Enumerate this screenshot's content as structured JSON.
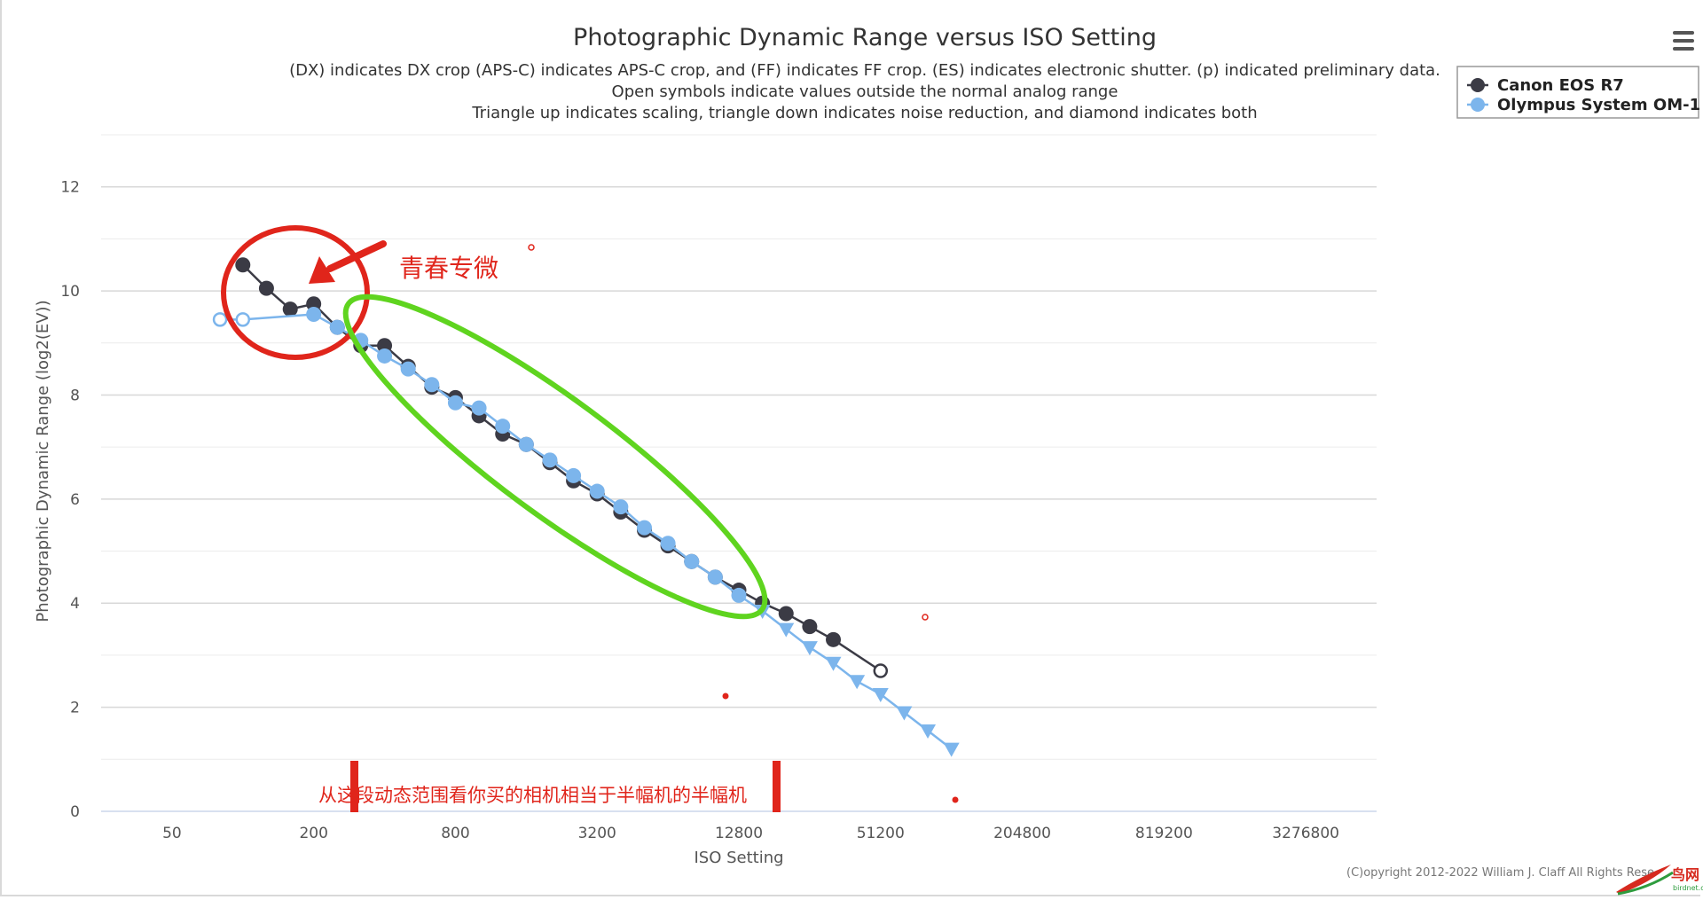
{
  "chart_data": {
    "type": "line",
    "title": "Photographic Dynamic Range versus ISO Setting",
    "subtitle": [
      "(DX) indicates DX crop (APS-C) indicates APS-C crop, and (FF) indicates FF crop. (ES) indicates electronic shutter. (p) indicated preliminary data.",
      "Open symbols indicate values outside the normal analog range",
      "Triangle up indicates scaling, triangle down indicates noise reduction, and diamond indicates both"
    ],
    "xlabel": "ISO Setting",
    "ylabel": "Photographic Dynamic Range (log2(EV))",
    "x_scale": "log2",
    "xlim": [
      25,
      6553600
    ],
    "ylim": [
      0,
      13
    ],
    "x_ticks": [
      50,
      200,
      800,
      3200,
      12800,
      51200,
      204800,
      819200,
      3276800
    ],
    "y_ticks": [
      0,
      2,
      4,
      6,
      8,
      10,
      12
    ],
    "grid": true,
    "legend_position": "top-right",
    "series": [
      {
        "name": "Canon EOS R7",
        "color": "#3b3b45",
        "points": [
          {
            "x": 100,
            "y": 10.5,
            "marker": "circle"
          },
          {
            "x": 126,
            "y": 10.05,
            "marker": "circle"
          },
          {
            "x": 159,
            "y": 9.65,
            "marker": "circle"
          },
          {
            "x": 200,
            "y": 9.75,
            "marker": "circle"
          },
          {
            "x": 252,
            "y": 9.3,
            "marker": "circle"
          },
          {
            "x": 317,
            "y": 8.95,
            "marker": "circle"
          },
          {
            "x": 400,
            "y": 8.95,
            "marker": "circle"
          },
          {
            "x": 504,
            "y": 8.55,
            "marker": "circle"
          },
          {
            "x": 635,
            "y": 8.15,
            "marker": "circle"
          },
          {
            "x": 800,
            "y": 7.95,
            "marker": "circle"
          },
          {
            "x": 1008,
            "y": 7.6,
            "marker": "circle"
          },
          {
            "x": 1270,
            "y": 7.25,
            "marker": "circle"
          },
          {
            "x": 1600,
            "y": 7.05,
            "marker": "circle"
          },
          {
            "x": 2016,
            "y": 6.7,
            "marker": "circle"
          },
          {
            "x": 2540,
            "y": 6.35,
            "marker": "circle"
          },
          {
            "x": 3200,
            "y": 6.1,
            "marker": "circle"
          },
          {
            "x": 4032,
            "y": 5.75,
            "marker": "circle"
          },
          {
            "x": 5080,
            "y": 5.4,
            "marker": "circle"
          },
          {
            "x": 6400,
            "y": 5.1,
            "marker": "circle"
          },
          {
            "x": 8063,
            "y": 4.8,
            "marker": "circle"
          },
          {
            "x": 10159,
            "y": 4.5,
            "marker": "circle"
          },
          {
            "x": 12800,
            "y": 4.25,
            "marker": "circle"
          },
          {
            "x": 16127,
            "y": 4.0,
            "marker": "circle"
          },
          {
            "x": 20319,
            "y": 3.8,
            "marker": "circle"
          },
          {
            "x": 25600,
            "y": 3.55,
            "marker": "circle"
          },
          {
            "x": 32254,
            "y": 3.3,
            "marker": "circle"
          },
          {
            "x": 51200,
            "y": 2.7,
            "marker": "circle-open"
          }
        ]
      },
      {
        "name": "Olympus System OM-1",
        "color": "#7cb5ec",
        "points": [
          {
            "x": 80,
            "y": 9.45,
            "marker": "circle-open"
          },
          {
            "x": 100,
            "y": 9.45,
            "marker": "circle-open"
          },
          {
            "x": 200,
            "y": 9.55,
            "marker": "circle"
          },
          {
            "x": 252,
            "y": 9.3,
            "marker": "circle"
          },
          {
            "x": 317,
            "y": 9.05,
            "marker": "circle"
          },
          {
            "x": 400,
            "y": 8.75,
            "marker": "circle"
          },
          {
            "x": 504,
            "y": 8.5,
            "marker": "circle"
          },
          {
            "x": 635,
            "y": 8.2,
            "marker": "circle"
          },
          {
            "x": 800,
            "y": 7.85,
            "marker": "circle"
          },
          {
            "x": 1008,
            "y": 7.75,
            "marker": "circle"
          },
          {
            "x": 1270,
            "y": 7.4,
            "marker": "circle"
          },
          {
            "x": 1600,
            "y": 7.05,
            "marker": "circle"
          },
          {
            "x": 2016,
            "y": 6.75,
            "marker": "circle"
          },
          {
            "x": 2540,
            "y": 6.45,
            "marker": "circle"
          },
          {
            "x": 3200,
            "y": 6.15,
            "marker": "circle"
          },
          {
            "x": 4032,
            "y": 5.85,
            "marker": "circle"
          },
          {
            "x": 5080,
            "y": 5.45,
            "marker": "circle"
          },
          {
            "x": 6400,
            "y": 5.15,
            "marker": "circle"
          },
          {
            "x": 8063,
            "y": 4.8,
            "marker": "circle"
          },
          {
            "x": 10159,
            "y": 4.5,
            "marker": "circle"
          },
          {
            "x": 12800,
            "y": 4.15,
            "marker": "circle"
          },
          {
            "x": 16127,
            "y": 3.85,
            "marker": "triangle-down"
          },
          {
            "x": 20319,
            "y": 3.5,
            "marker": "triangle-down"
          },
          {
            "x": 25600,
            "y": 3.15,
            "marker": "triangle-down"
          },
          {
            "x": 32254,
            "y": 2.85,
            "marker": "triangle-down"
          },
          {
            "x": 40637,
            "y": 2.5,
            "marker": "triangle-down"
          },
          {
            "x": 51200,
            "y": 2.25,
            "marker": "triangle-down"
          },
          {
            "x": 64508,
            "y": 1.9,
            "marker": "triangle-down"
          },
          {
            "x": 81275,
            "y": 1.55,
            "marker": "triangle-down"
          },
          {
            "x": 102400,
            "y": 1.2,
            "marker": "triangle-down"
          }
        ]
      }
    ],
    "credit": "(C)opyright 2012-2022 William J. Claff All Rights Rese",
    "annotations": {
      "label_top": "青春专微",
      "label_bottom": "从这段动态范围看你买的相机相当于半幅机的半幅机",
      "red_color": "#e0251b",
      "green_color": "#5fd41f"
    }
  },
  "watermark": {
    "text": "鸟网",
    "subtext": "birdnet.cn"
  }
}
